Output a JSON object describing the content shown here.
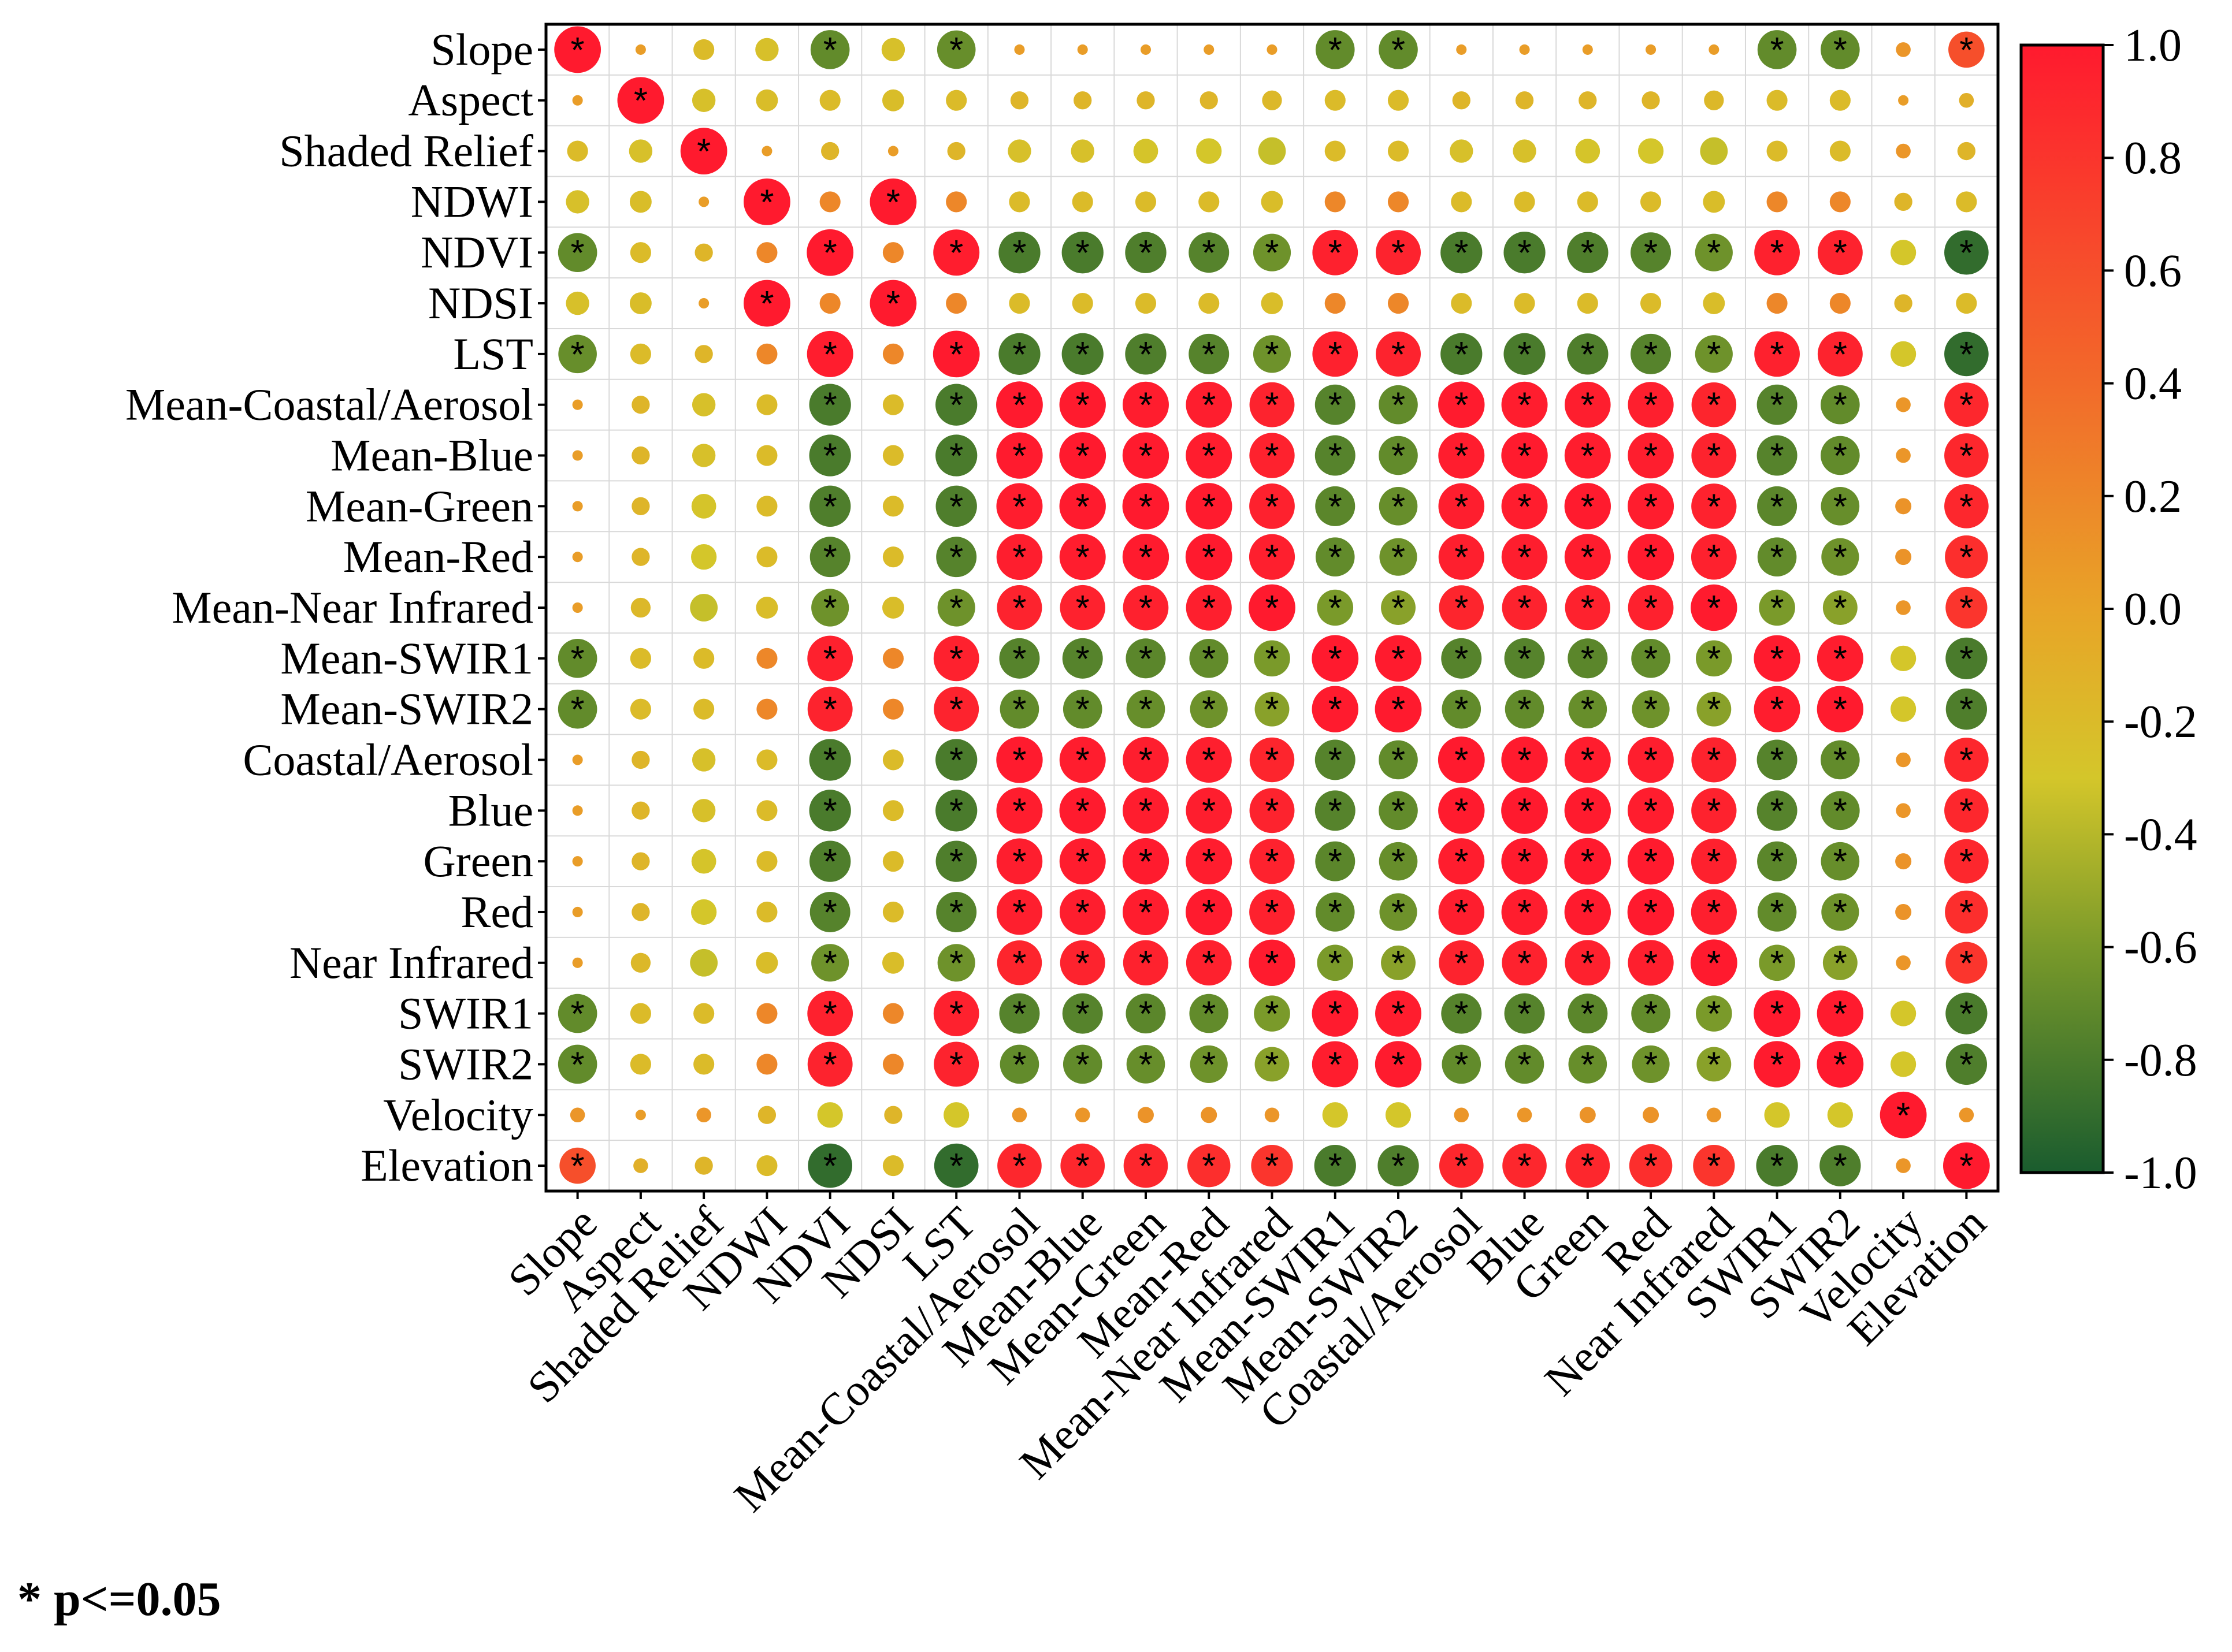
{
  "chart_data": {
    "type": "heatmap",
    "subtype": "correlation-circle-matrix",
    "variables": [
      "Slope",
      "Aspect",
      "Shaded Relief",
      "NDWI",
      "NDVI",
      "NDSI",
      "LST",
      "Mean-Coastal/Aerosol",
      "Mean-Blue",
      "Mean-Green",
      "Mean-Red",
      "Mean-Near Infrared",
      "Mean-SWIR1",
      "Mean-SWIR2",
      "Coastal/Aerosol",
      "Blue",
      "Green",
      "Red",
      "Near Infrared",
      "SWIR1",
      "SWIR2",
      "Velocity",
      "Elevation"
    ],
    "values": [
      [
        1.0,
        0.05,
        -0.2,
        -0.25,
        -0.7,
        -0.25,
        -0.68,
        0.05,
        0.05,
        0.05,
        0.05,
        0.05,
        -0.7,
        -0.7,
        0.05,
        0.05,
        0.05,
        0.05,
        0.05,
        -0.7,
        -0.7,
        0.1,
        0.6
      ],
      [
        0.05,
        1.0,
        -0.25,
        -0.22,
        -0.2,
        -0.22,
        -0.2,
        -0.15,
        -0.15,
        -0.15,
        -0.15,
        -0.18,
        -0.2,
        -0.2,
        -0.15,
        -0.15,
        -0.15,
        -0.15,
        -0.18,
        -0.2,
        -0.2,
        0.05,
        -0.1
      ],
      [
        -0.2,
        -0.25,
        1.0,
        0.05,
        -0.15,
        0.05,
        -0.15,
        -0.25,
        -0.25,
        -0.28,
        -0.3,
        -0.35,
        -0.2,
        -0.2,
        -0.25,
        -0.25,
        -0.28,
        -0.3,
        -0.35,
        -0.2,
        -0.2,
        0.1,
        -0.15
      ],
      [
        -0.25,
        -0.22,
        0.05,
        1.0,
        0.2,
        1.0,
        0.2,
        -0.2,
        -0.2,
        -0.2,
        -0.2,
        -0.22,
        0.2,
        0.2,
        -0.2,
        -0.2,
        -0.2,
        -0.2,
        -0.22,
        0.2,
        0.2,
        -0.15,
        -0.2
      ],
      [
        -0.7,
        -0.2,
        -0.15,
        0.2,
        1.0,
        0.2,
        0.98,
        -0.8,
        -0.8,
        -0.78,
        -0.75,
        -0.65,
        0.95,
        0.93,
        -0.8,
        -0.8,
        -0.78,
        -0.75,
        -0.65,
        0.95,
        0.93,
        -0.3,
        -0.9
      ],
      [
        -0.25,
        -0.22,
        0.05,
        1.0,
        0.2,
        1.0,
        0.2,
        -0.2,
        -0.2,
        -0.2,
        -0.2,
        -0.22,
        0.2,
        0.2,
        -0.2,
        -0.2,
        -0.2,
        -0.2,
        -0.22,
        0.2,
        0.2,
        -0.15,
        -0.2
      ],
      [
        -0.68,
        -0.2,
        -0.15,
        0.2,
        0.98,
        0.2,
        1.0,
        -0.8,
        -0.8,
        -0.78,
        -0.75,
        -0.65,
        0.95,
        0.93,
        -0.8,
        -0.8,
        -0.78,
        -0.75,
        -0.65,
        0.95,
        0.93,
        -0.3,
        -0.9
      ],
      [
        0.05,
        -0.15,
        -0.25,
        -0.2,
        -0.8,
        -0.2,
        -0.8,
        1.0,
        0.99,
        0.98,
        0.97,
        0.93,
        -0.75,
        -0.7,
        0.99,
        0.98,
        0.97,
        0.96,
        0.92,
        -0.75,
        -0.7,
        0.1,
        0.9
      ],
      [
        0.05,
        -0.15,
        -0.25,
        -0.2,
        -0.8,
        -0.2,
        -0.8,
        0.99,
        1.0,
        0.99,
        0.98,
        0.94,
        -0.75,
        -0.7,
        0.98,
        0.99,
        0.98,
        0.97,
        0.93,
        -0.75,
        -0.7,
        0.1,
        0.9
      ],
      [
        0.05,
        -0.15,
        -0.28,
        -0.2,
        -0.78,
        -0.2,
        -0.78,
        0.98,
        0.99,
        1.0,
        0.99,
        0.95,
        -0.73,
        -0.68,
        0.97,
        0.98,
        0.99,
        0.98,
        0.94,
        -0.73,
        -0.68,
        0.12,
        0.9
      ],
      [
        0.05,
        -0.15,
        -0.3,
        -0.2,
        -0.75,
        -0.2,
        -0.75,
        0.97,
        0.98,
        0.99,
        1.0,
        0.96,
        -0.7,
        -0.65,
        0.96,
        0.97,
        0.98,
        0.99,
        0.95,
        -0.7,
        -0.65,
        0.12,
        0.85
      ],
      [
        0.05,
        -0.18,
        -0.35,
        -0.22,
        -0.65,
        -0.22,
        -0.65,
        0.93,
        0.94,
        0.95,
        0.96,
        1.0,
        -0.6,
        -0.55,
        0.92,
        0.93,
        0.94,
        0.95,
        0.99,
        -0.6,
        -0.55,
        0.1,
        0.8
      ],
      [
        -0.7,
        -0.2,
        -0.2,
        0.2,
        0.95,
        0.2,
        0.95,
        -0.75,
        -0.75,
        -0.73,
        -0.7,
        -0.6,
        1.0,
        0.99,
        -0.75,
        -0.75,
        -0.73,
        -0.7,
        -0.6,
        0.99,
        0.98,
        -0.3,
        -0.8
      ],
      [
        -0.7,
        -0.2,
        -0.2,
        0.2,
        0.93,
        0.2,
        0.93,
        -0.7,
        -0.7,
        -0.68,
        -0.65,
        -0.55,
        0.99,
        1.0,
        -0.7,
        -0.7,
        -0.68,
        -0.65,
        -0.55,
        0.98,
        0.99,
        -0.3,
        -0.78
      ],
      [
        0.05,
        -0.15,
        -0.25,
        -0.2,
        -0.8,
        -0.2,
        -0.8,
        0.99,
        0.98,
        0.97,
        0.96,
        0.92,
        -0.75,
        -0.7,
        1.0,
        0.99,
        0.98,
        0.97,
        0.93,
        -0.75,
        -0.7,
        0.1,
        0.9
      ],
      [
        0.05,
        -0.15,
        -0.25,
        -0.2,
        -0.8,
        -0.2,
        -0.8,
        0.98,
        0.99,
        0.98,
        0.97,
        0.93,
        -0.75,
        -0.7,
        0.99,
        1.0,
        0.99,
        0.98,
        0.94,
        -0.75,
        -0.7,
        0.1,
        0.9
      ],
      [
        0.05,
        -0.15,
        -0.28,
        -0.2,
        -0.78,
        -0.2,
        -0.78,
        0.97,
        0.98,
        0.99,
        0.98,
        0.94,
        -0.73,
        -0.68,
        0.98,
        0.99,
        1.0,
        0.99,
        0.95,
        -0.73,
        -0.68,
        0.12,
        0.9
      ],
      [
        0.05,
        -0.15,
        -0.3,
        -0.2,
        -0.75,
        -0.2,
        -0.75,
        0.96,
        0.97,
        0.98,
        0.99,
        0.95,
        -0.7,
        -0.65,
        0.97,
        0.98,
        0.99,
        1.0,
        0.96,
        -0.7,
        -0.65,
        0.12,
        0.85
      ],
      [
        0.05,
        -0.18,
        -0.35,
        -0.22,
        -0.65,
        -0.22,
        -0.65,
        0.92,
        0.93,
        0.94,
        0.95,
        0.99,
        -0.6,
        -0.55,
        0.93,
        0.94,
        0.95,
        0.96,
        1.0,
        -0.6,
        -0.55,
        0.1,
        0.8
      ],
      [
        -0.7,
        -0.2,
        -0.2,
        0.2,
        0.95,
        0.2,
        0.95,
        -0.75,
        -0.75,
        -0.73,
        -0.7,
        -0.6,
        0.99,
        0.98,
        -0.75,
        -0.75,
        -0.73,
        -0.7,
        -0.6,
        1.0,
        0.99,
        -0.3,
        -0.8
      ],
      [
        -0.7,
        -0.2,
        -0.2,
        0.2,
        0.93,
        0.2,
        0.93,
        -0.7,
        -0.7,
        -0.68,
        -0.65,
        -0.55,
        0.98,
        0.99,
        -0.7,
        -0.7,
        -0.68,
        -0.65,
        -0.55,
        0.99,
        1.0,
        -0.3,
        -0.78
      ],
      [
        0.1,
        0.05,
        0.1,
        -0.15,
        -0.3,
        -0.15,
        -0.3,
        0.1,
        0.1,
        0.12,
        0.12,
        0.1,
        -0.3,
        -0.3,
        0.1,
        0.1,
        0.12,
        0.12,
        0.1,
        -0.3,
        -0.3,
        1.0,
        0.1
      ],
      [
        0.6,
        -0.1,
        -0.15,
        -0.2,
        -0.9,
        -0.2,
        -0.9,
        0.9,
        0.9,
        0.9,
        0.85,
        0.8,
        -0.8,
        -0.78,
        0.9,
        0.9,
        0.9,
        0.85,
        0.8,
        -0.8,
        -0.78,
        0.1,
        1.0
      ]
    ],
    "significant": [
      [
        1,
        0,
        0,
        0,
        1,
        0,
        1,
        0,
        0,
        0,
        0,
        0,
        1,
        1,
        0,
        0,
        0,
        0,
        0,
        1,
        1,
        0,
        1
      ],
      [
        0,
        1,
        0,
        0,
        0,
        0,
        0,
        0,
        0,
        0,
        0,
        0,
        0,
        0,
        0,
        0,
        0,
        0,
        0,
        0,
        0,
        0,
        0
      ],
      [
        0,
        0,
        1,
        0,
        0,
        0,
        0,
        0,
        0,
        0,
        0,
        0,
        0,
        0,
        0,
        0,
        0,
        0,
        0,
        0,
        0,
        0,
        0
      ],
      [
        0,
        0,
        0,
        1,
        0,
        1,
        0,
        0,
        0,
        0,
        0,
        0,
        0,
        0,
        0,
        0,
        0,
        0,
        0,
        0,
        0,
        0,
        0
      ],
      [
        1,
        0,
        0,
        0,
        1,
        0,
        1,
        1,
        1,
        1,
        1,
        1,
        1,
        1,
        1,
        1,
        1,
        1,
        1,
        1,
        1,
        0,
        1
      ],
      [
        0,
        0,
        0,
        1,
        0,
        1,
        0,
        0,
        0,
        0,
        0,
        0,
        0,
        0,
        0,
        0,
        0,
        0,
        0,
        0,
        0,
        0,
        0
      ],
      [
        1,
        0,
        0,
        0,
        1,
        0,
        1,
        1,
        1,
        1,
        1,
        1,
        1,
        1,
        1,
        1,
        1,
        1,
        1,
        1,
        1,
        0,
        1
      ],
      [
        0,
        0,
        0,
        0,
        1,
        0,
        1,
        1,
        1,
        1,
        1,
        1,
        1,
        1,
        1,
        1,
        1,
        1,
        1,
        1,
        1,
        0,
        1
      ],
      [
        0,
        0,
        0,
        0,
        1,
        0,
        1,
        1,
        1,
        1,
        1,
        1,
        1,
        1,
        1,
        1,
        1,
        1,
        1,
        1,
        1,
        0,
        1
      ],
      [
        0,
        0,
        0,
        0,
        1,
        0,
        1,
        1,
        1,
        1,
        1,
        1,
        1,
        1,
        1,
        1,
        1,
        1,
        1,
        1,
        1,
        0,
        1
      ],
      [
        0,
        0,
        0,
        0,
        1,
        0,
        1,
        1,
        1,
        1,
        1,
        1,
        1,
        1,
        1,
        1,
        1,
        1,
        1,
        1,
        1,
        0,
        1
      ],
      [
        0,
        0,
        0,
        0,
        1,
        0,
        1,
        1,
        1,
        1,
        1,
        1,
        1,
        1,
        1,
        1,
        1,
        1,
        1,
        1,
        1,
        0,
        1
      ],
      [
        1,
        0,
        0,
        0,
        1,
        0,
        1,
        1,
        1,
        1,
        1,
        1,
        1,
        1,
        1,
        1,
        1,
        1,
        1,
        1,
        1,
        0,
        1
      ],
      [
        1,
        0,
        0,
        0,
        1,
        0,
        1,
        1,
        1,
        1,
        1,
        1,
        1,
        1,
        1,
        1,
        1,
        1,
        1,
        1,
        1,
        0,
        1
      ],
      [
        0,
        0,
        0,
        0,
        1,
        0,
        1,
        1,
        1,
        1,
        1,
        1,
        1,
        1,
        1,
        1,
        1,
        1,
        1,
        1,
        1,
        0,
        1
      ],
      [
        0,
        0,
        0,
        0,
        1,
        0,
        1,
        1,
        1,
        1,
        1,
        1,
        1,
        1,
        1,
        1,
        1,
        1,
        1,
        1,
        1,
        0,
        1
      ],
      [
        0,
        0,
        0,
        0,
        1,
        0,
        1,
        1,
        1,
        1,
        1,
        1,
        1,
        1,
        1,
        1,
        1,
        1,
        1,
        1,
        1,
        0,
        1
      ],
      [
        0,
        0,
        0,
        0,
        1,
        0,
        1,
        1,
        1,
        1,
        1,
        1,
        1,
        1,
        1,
        1,
        1,
        1,
        1,
        1,
        1,
        0,
        1
      ],
      [
        0,
        0,
        0,
        0,
        1,
        0,
        1,
        1,
        1,
        1,
        1,
        1,
        1,
        1,
        1,
        1,
        1,
        1,
        1,
        1,
        1,
        0,
        1
      ],
      [
        1,
        0,
        0,
        0,
        1,
        0,
        1,
        1,
        1,
        1,
        1,
        1,
        1,
        1,
        1,
        1,
        1,
        1,
        1,
        1,
        1,
        0,
        1
      ],
      [
        1,
        0,
        0,
        0,
        1,
        0,
        1,
        1,
        1,
        1,
        1,
        1,
        1,
        1,
        1,
        1,
        1,
        1,
        1,
        1,
        1,
        0,
        1
      ],
      [
        0,
        0,
        0,
        0,
        0,
        0,
        0,
        0,
        0,
        0,
        0,
        0,
        0,
        0,
        0,
        0,
        0,
        0,
        0,
        0,
        0,
        1,
        0
      ],
      [
        1,
        0,
        0,
        0,
        1,
        0,
        1,
        1,
        1,
        1,
        1,
        1,
        1,
        1,
        1,
        1,
        1,
        1,
        1,
        1,
        1,
        0,
        1
      ]
    ],
    "significance_marker": "*",
    "colorbar": {
      "range": [
        -1.0,
        1.0
      ],
      "ticks": [
        "1.0",
        "0.8",
        "0.6",
        "0.4",
        "0.2",
        "0.0",
        "-0.2",
        "-0.4",
        "-0.6",
        "-0.8",
        "-1.0"
      ],
      "colors": [
        {
          "value": -1.0,
          "color": "#1a5c2e"
        },
        {
          "value": -0.6,
          "color": "#7a9a2a"
        },
        {
          "value": -0.3,
          "color": "#d4c62a"
        },
        {
          "value": 0.0,
          "color": "#e8a428"
        },
        {
          "value": 0.4,
          "color": "#f26a2a"
        },
        {
          "value": 1.0,
          "color": "#ff1a2e"
        }
      ]
    },
    "grid": true,
    "footnote": "* p<=0.05"
  }
}
